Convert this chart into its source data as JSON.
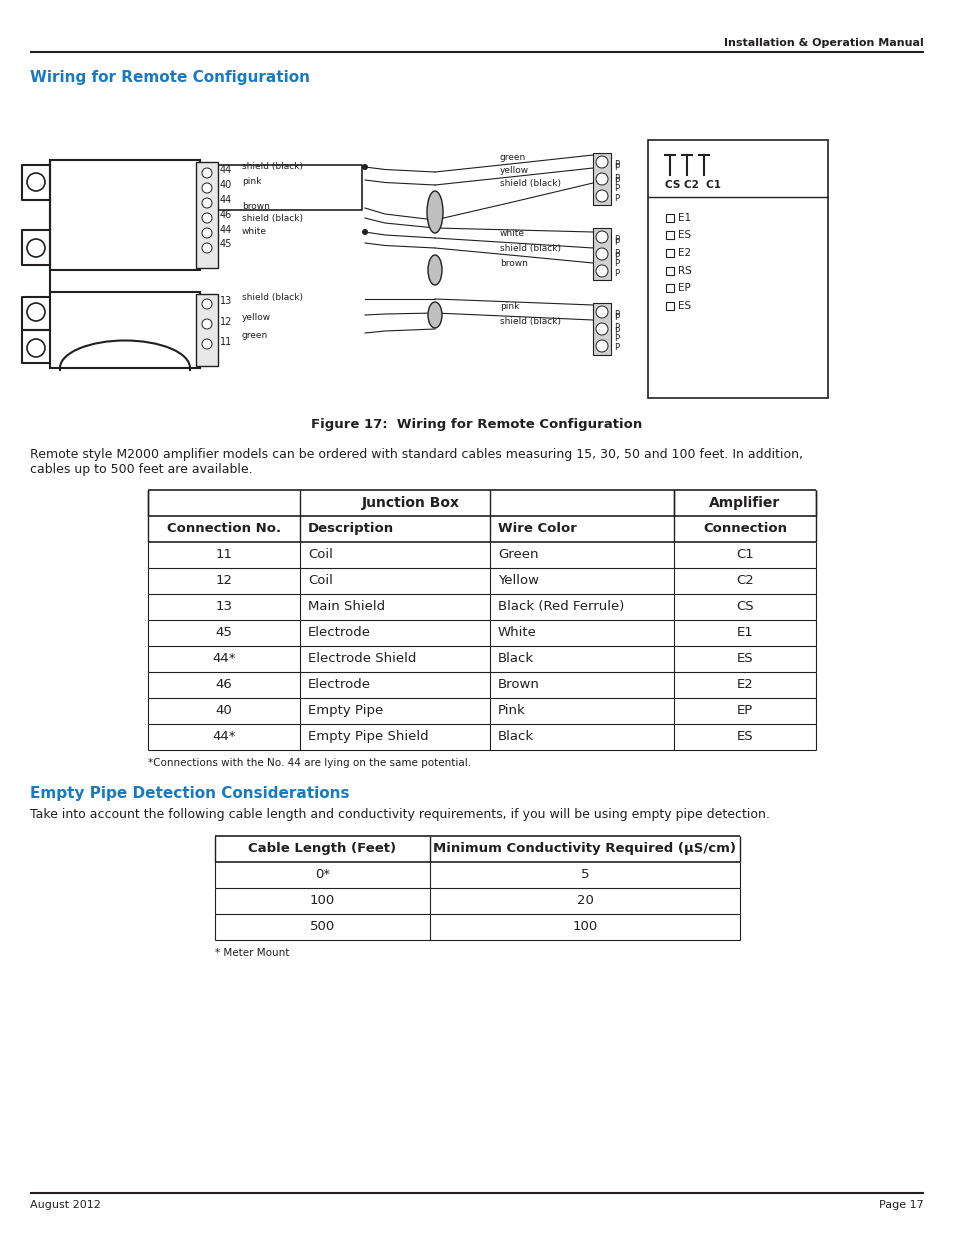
{
  "header_text": "Installation & Operation Manual",
  "footer_left": "August 2012",
  "footer_right": "Page 17",
  "section1_title": "Wiring for Remote Configuration",
  "figure_caption": "Figure 17:  Wiring for Remote Configuration",
  "section1_body": "Remote style M2000 amplifier models can be ordered with standard cables measuring 15, 30, 50 and 100 feet. In addition,\ncables up to 500 feet are available.",
  "table1_headers": [
    "Junction Box",
    "Amplifier"
  ],
  "table1_subheaders": [
    "Connection No.",
    "Description",
    "Wire Color",
    "Connection"
  ],
  "table1_rows": [
    [
      "11",
      "Coil",
      "Green",
      "C1"
    ],
    [
      "12",
      "Coil",
      "Yellow",
      "C2"
    ],
    [
      "13",
      "Main Shield",
      "Black (Red Ferrule)",
      "CS"
    ],
    [
      "45",
      "Electrode",
      "White",
      "E1"
    ],
    [
      "44*",
      "Electrode Shield",
      "Black",
      "ES"
    ],
    [
      "46",
      "Electrode",
      "Brown",
      "E2"
    ],
    [
      "40",
      "Empty Pipe",
      "Pink",
      "EP"
    ],
    [
      "44*",
      "Empty Pipe Shield",
      "Black",
      "ES"
    ]
  ],
  "table1_footnote": "*Connections with the No. 44 are lying on the same potential.",
  "section2_title": "Empty Pipe Detection Considerations",
  "section2_body": "Take into account the following cable length and conductivity requirements, if you will be using empty pipe detection.",
  "table2_headers": [
    "Cable Length (Feet)",
    "Minimum Conductivity Required (μS/cm)"
  ],
  "table2_rows": [
    [
      "0*",
      "5"
    ],
    [
      "100",
      "20"
    ],
    [
      "500",
      "100"
    ]
  ],
  "table2_footnote": "* Meter Mount",
  "accent_color": "#1a7abf",
  "text_color": "#231f20",
  "line_color": "#231f20",
  "bg_color": "#ffffff"
}
